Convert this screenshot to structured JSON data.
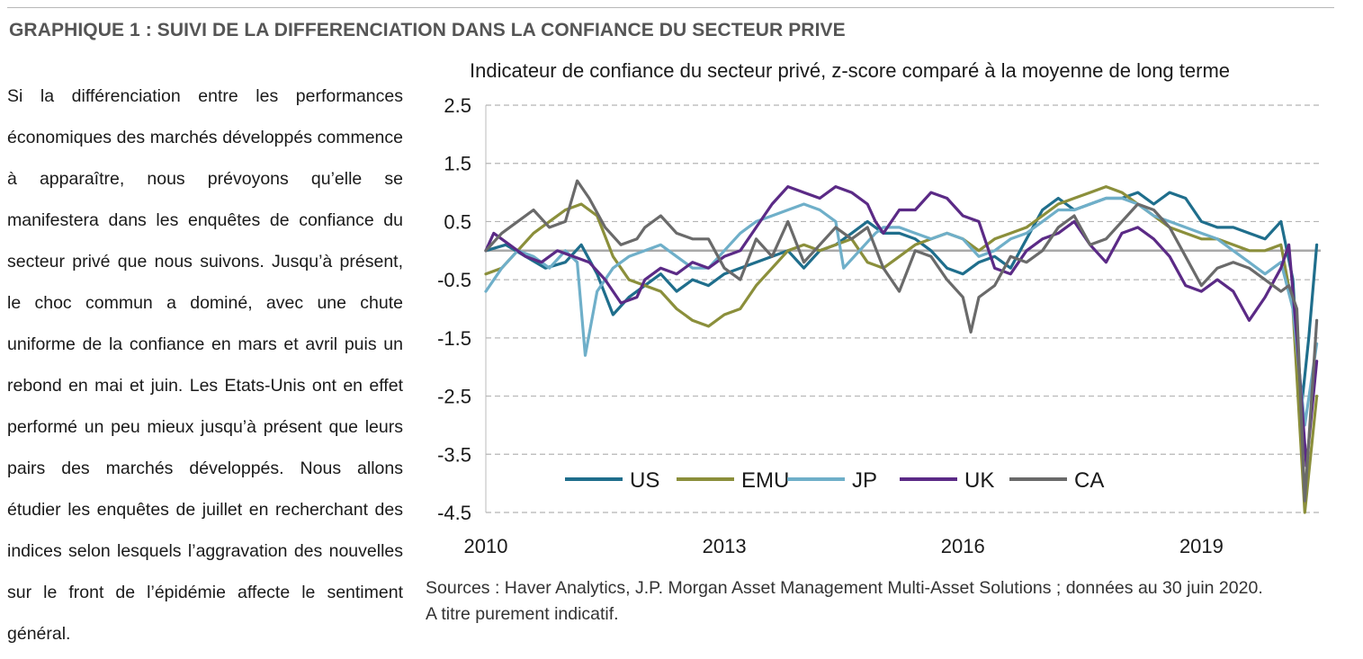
{
  "header": {
    "title": "GRAPHIQUE 1 : SUIVI DE LA DIFFERENCIATION DANS LA CONFIANCE DU SECTEUR PRIVE"
  },
  "body": {
    "paragraph": "Si la différenciation entre les performances économiques des marchés développés commence à apparaître, nous prévoyons qu’elle se manifestera dans les enquêtes de confiance du secteur privé que nous suivons. Jusqu’à présent, le choc commun a dominé, avec une chute uniforme de la confiance en mars et avril puis un rebond en mai et juin. Les Etats-Unis ont en effet performé un peu mieux jusqu’à présent que leurs pairs des marchés développés. Nous allons étudier les enquêtes de juillet en recherchant des indices selon lesquels l’aggravation des nouvelles sur le front de l’épidémie affecte le sentiment général."
  },
  "footer": {
    "sources": "Sources : Haver Analytics, J.P. Morgan Asset Management Multi-Asset Solutions ; données au 30 juin 2020.",
    "disclaimer": "A titre purement indicatif."
  },
  "chart_data": {
    "type": "line",
    "title": "Indicateur de confiance du secteur privé, z-score comparé à la moyenne de long terme",
    "xlabel": "",
    "ylabel": "",
    "xlim": [
      2010,
      2020.5
    ],
    "ylim": [
      -4.5,
      2.5
    ],
    "x_ticks": [
      2010,
      2013,
      2016,
      2019
    ],
    "x_tick_labels": [
      "2010",
      "2013",
      "2016",
      "2019"
    ],
    "y_ticks": [
      2.5,
      1.5,
      0.5,
      -0.5,
      -1.5,
      -2.5,
      -3.5,
      -4.5
    ],
    "y_tick_labels": [
      "2.5",
      "1.5",
      "0.5",
      "-0.5",
      "-1.5",
      "-2.5",
      "-3.5",
      "-4.5"
    ],
    "grid": "horizontal dashed",
    "legend": "bottom-left, inside plot",
    "series": [
      {
        "name": "US",
        "color": "#1f6e8c",
        "points": [
          [
            2010.0,
            0.0
          ],
          [
            2010.25,
            0.1
          ],
          [
            2010.5,
            -0.1
          ],
          [
            2010.75,
            -0.3
          ],
          [
            2011.0,
            -0.2
          ],
          [
            2011.2,
            0.1
          ],
          [
            2011.4,
            -0.4
          ],
          [
            2011.6,
            -1.1
          ],
          [
            2011.8,
            -0.8
          ],
          [
            2012.0,
            -0.6
          ],
          [
            2012.2,
            -0.4
          ],
          [
            2012.4,
            -0.7
          ],
          [
            2012.6,
            -0.5
          ],
          [
            2012.8,
            -0.6
          ],
          [
            2013.0,
            -0.4
          ],
          [
            2013.2,
            -0.3
          ],
          [
            2013.4,
            -0.2
          ],
          [
            2013.6,
            -0.1
          ],
          [
            2013.8,
            0.0
          ],
          [
            2014.0,
            -0.3
          ],
          [
            2014.2,
            0.0
          ],
          [
            2014.4,
            0.1
          ],
          [
            2014.6,
            0.3
          ],
          [
            2014.8,
            0.5
          ],
          [
            2015.0,
            0.3
          ],
          [
            2015.2,
            0.3
          ],
          [
            2015.4,
            0.2
          ],
          [
            2015.6,
            0.0
          ],
          [
            2015.8,
            -0.3
          ],
          [
            2016.0,
            -0.4
          ],
          [
            2016.2,
            -0.2
          ],
          [
            2016.4,
            -0.1
          ],
          [
            2016.6,
            -0.3
          ],
          [
            2016.8,
            0.2
          ],
          [
            2017.0,
            0.7
          ],
          [
            2017.2,
            0.9
          ],
          [
            2017.4,
            0.7
          ],
          [
            2017.6,
            0.8
          ],
          [
            2017.8,
            0.9
          ],
          [
            2018.0,
            0.9
          ],
          [
            2018.2,
            1.0
          ],
          [
            2018.4,
            0.8
          ],
          [
            2018.6,
            1.0
          ],
          [
            2018.8,
            0.9
          ],
          [
            2019.0,
            0.5
          ],
          [
            2019.2,
            0.4
          ],
          [
            2019.4,
            0.4
          ],
          [
            2019.6,
            0.3
          ],
          [
            2019.8,
            0.2
          ],
          [
            2020.0,
            0.5
          ],
          [
            2020.15,
            -0.5
          ],
          [
            2020.25,
            -2.8
          ],
          [
            2020.35,
            -1.5
          ],
          [
            2020.45,
            0.1
          ]
        ]
      },
      {
        "name": "EMU",
        "color": "#8b8f3b",
        "points": [
          [
            2010.0,
            -0.4
          ],
          [
            2010.2,
            -0.3
          ],
          [
            2010.4,
            0.0
          ],
          [
            2010.6,
            0.3
          ],
          [
            2010.8,
            0.5
          ],
          [
            2011.0,
            0.7
          ],
          [
            2011.2,
            0.8
          ],
          [
            2011.4,
            0.6
          ],
          [
            2011.6,
            -0.1
          ],
          [
            2011.8,
            -0.5
          ],
          [
            2012.0,
            -0.6
          ],
          [
            2012.2,
            -0.7
          ],
          [
            2012.4,
            -1.0
          ],
          [
            2012.6,
            -1.2
          ],
          [
            2012.8,
            -1.3
          ],
          [
            2013.0,
            -1.1
          ],
          [
            2013.2,
            -1.0
          ],
          [
            2013.4,
            -0.6
          ],
          [
            2013.6,
            -0.3
          ],
          [
            2013.8,
            0.0
          ],
          [
            2014.0,
            0.1
          ],
          [
            2014.2,
            0.0
          ],
          [
            2014.4,
            0.1
          ],
          [
            2014.6,
            0.2
          ],
          [
            2014.8,
            -0.2
          ],
          [
            2015.0,
            -0.3
          ],
          [
            2015.2,
            -0.1
          ],
          [
            2015.4,
            0.1
          ],
          [
            2015.6,
            0.2
          ],
          [
            2015.8,
            0.3
          ],
          [
            2016.0,
            0.2
          ],
          [
            2016.2,
            0.0
          ],
          [
            2016.4,
            0.2
          ],
          [
            2016.6,
            0.3
          ],
          [
            2016.8,
            0.4
          ],
          [
            2017.0,
            0.6
          ],
          [
            2017.2,
            0.8
          ],
          [
            2017.4,
            0.9
          ],
          [
            2017.6,
            1.0
          ],
          [
            2017.8,
            1.1
          ],
          [
            2018.0,
            1.0
          ],
          [
            2018.2,
            0.8
          ],
          [
            2018.4,
            0.6
          ],
          [
            2018.6,
            0.4
          ],
          [
            2018.8,
            0.3
          ],
          [
            2019.0,
            0.2
          ],
          [
            2019.2,
            0.2
          ],
          [
            2019.4,
            0.1
          ],
          [
            2019.6,
            0.0
          ],
          [
            2019.8,
            0.0
          ],
          [
            2020.0,
            0.1
          ],
          [
            2020.15,
            -1.0
          ],
          [
            2020.3,
            -4.5
          ],
          [
            2020.45,
            -2.5
          ]
        ]
      },
      {
        "name": "JP",
        "color": "#6fafc9",
        "points": [
          [
            2010.0,
            -0.7
          ],
          [
            2010.2,
            -0.3
          ],
          [
            2010.4,
            0.0
          ],
          [
            2010.6,
            -0.1
          ],
          [
            2010.8,
            -0.3
          ],
          [
            2011.0,
            0.0
          ],
          [
            2011.15,
            -0.2
          ],
          [
            2011.25,
            -1.8
          ],
          [
            2011.4,
            -0.7
          ],
          [
            2011.6,
            -0.3
          ],
          [
            2011.8,
            -0.1
          ],
          [
            2012.0,
            0.0
          ],
          [
            2012.2,
            0.1
          ],
          [
            2012.4,
            -0.1
          ],
          [
            2012.6,
            -0.3
          ],
          [
            2012.8,
            -0.3
          ],
          [
            2013.0,
            0.0
          ],
          [
            2013.2,
            0.3
          ],
          [
            2013.4,
            0.5
          ],
          [
            2013.6,
            0.6
          ],
          [
            2013.8,
            0.7
          ],
          [
            2014.0,
            0.8
          ],
          [
            2014.2,
            0.7
          ],
          [
            2014.4,
            0.5
          ],
          [
            2014.5,
            -0.3
          ],
          [
            2014.7,
            0.0
          ],
          [
            2014.9,
            0.3
          ],
          [
            2015.0,
            0.4
          ],
          [
            2015.2,
            0.4
          ],
          [
            2015.4,
            0.3
          ],
          [
            2015.6,
            0.2
          ],
          [
            2015.8,
            0.3
          ],
          [
            2016.0,
            0.2
          ],
          [
            2016.2,
            -0.1
          ],
          [
            2016.4,
            0.0
          ],
          [
            2016.6,
            0.2
          ],
          [
            2016.8,
            0.3
          ],
          [
            2017.0,
            0.5
          ],
          [
            2017.2,
            0.7
          ],
          [
            2017.4,
            0.7
          ],
          [
            2017.6,
            0.8
          ],
          [
            2017.8,
            0.9
          ],
          [
            2018.0,
            0.9
          ],
          [
            2018.2,
            0.8
          ],
          [
            2018.4,
            0.6
          ],
          [
            2018.6,
            0.5
          ],
          [
            2018.8,
            0.4
          ],
          [
            2019.0,
            0.3
          ],
          [
            2019.2,
            0.2
          ],
          [
            2019.4,
            0.0
          ],
          [
            2019.6,
            -0.2
          ],
          [
            2019.8,
            -0.4
          ],
          [
            2020.0,
            -0.2
          ],
          [
            2020.15,
            -1.0
          ],
          [
            2020.3,
            -3.0
          ],
          [
            2020.45,
            -1.6
          ]
        ]
      },
      {
        "name": "UK",
        "color": "#5b2a86",
        "points": [
          [
            2010.0,
            0.0
          ],
          [
            2010.1,
            0.3
          ],
          [
            2010.3,
            0.1
          ],
          [
            2010.5,
            -0.1
          ],
          [
            2010.7,
            -0.2
          ],
          [
            2010.9,
            0.0
          ],
          [
            2011.1,
            -0.1
          ],
          [
            2011.3,
            -0.2
          ],
          [
            2011.5,
            -0.5
          ],
          [
            2011.7,
            -0.9
          ],
          [
            2011.9,
            -0.8
          ],
          [
            2012.0,
            -0.5
          ],
          [
            2012.2,
            -0.3
          ],
          [
            2012.4,
            -0.4
          ],
          [
            2012.6,
            -0.2
          ],
          [
            2012.8,
            -0.3
          ],
          [
            2013.0,
            -0.1
          ],
          [
            2013.2,
            0.0
          ],
          [
            2013.4,
            0.4
          ],
          [
            2013.6,
            0.8
          ],
          [
            2013.8,
            1.1
          ],
          [
            2014.0,
            1.0
          ],
          [
            2014.2,
            0.9
          ],
          [
            2014.4,
            1.1
          ],
          [
            2014.6,
            1.0
          ],
          [
            2014.8,
            0.8
          ],
          [
            2014.9,
            0.5
          ],
          [
            2015.0,
            0.3
          ],
          [
            2015.2,
            0.7
          ],
          [
            2015.4,
            0.7
          ],
          [
            2015.6,
            1.0
          ],
          [
            2015.8,
            0.9
          ],
          [
            2016.0,
            0.6
          ],
          [
            2016.2,
            0.5
          ],
          [
            2016.4,
            -0.3
          ],
          [
            2016.6,
            -0.4
          ],
          [
            2016.8,
            0.0
          ],
          [
            2017.0,
            0.2
          ],
          [
            2017.2,
            0.3
          ],
          [
            2017.4,
            0.5
          ],
          [
            2017.6,
            0.1
          ],
          [
            2017.8,
            -0.2
          ],
          [
            2018.0,
            0.3
          ],
          [
            2018.2,
            0.4
          ],
          [
            2018.4,
            0.2
          ],
          [
            2018.6,
            -0.1
          ],
          [
            2018.8,
            -0.6
          ],
          [
            2019.0,
            -0.7
          ],
          [
            2019.2,
            -0.5
          ],
          [
            2019.4,
            -0.7
          ],
          [
            2019.6,
            -1.2
          ],
          [
            2019.8,
            -0.8
          ],
          [
            2020.0,
            -0.3
          ],
          [
            2020.1,
            0.1
          ],
          [
            2020.2,
            -1.5
          ],
          [
            2020.32,
            -3.7
          ],
          [
            2020.45,
            -1.9
          ]
        ]
      },
      {
        "name": "CA",
        "color": "#6a6a6a",
        "points": [
          [
            2010.0,
            0.0
          ],
          [
            2010.2,
            0.3
          ],
          [
            2010.4,
            0.5
          ],
          [
            2010.6,
            0.7
          ],
          [
            2010.8,
            0.4
          ],
          [
            2011.0,
            0.5
          ],
          [
            2011.15,
            1.2
          ],
          [
            2011.3,
            0.9
          ],
          [
            2011.5,
            0.4
          ],
          [
            2011.7,
            0.1
          ],
          [
            2011.9,
            0.2
          ],
          [
            2012.0,
            0.4
          ],
          [
            2012.2,
            0.6
          ],
          [
            2012.4,
            0.3
          ],
          [
            2012.6,
            0.2
          ],
          [
            2012.8,
            0.2
          ],
          [
            2013.0,
            -0.3
          ],
          [
            2013.2,
            -0.5
          ],
          [
            2013.4,
            0.2
          ],
          [
            2013.6,
            -0.1
          ],
          [
            2013.8,
            0.5
          ],
          [
            2014.0,
            -0.2
          ],
          [
            2014.2,
            0.1
          ],
          [
            2014.4,
            0.4
          ],
          [
            2014.6,
            0.2
          ],
          [
            2014.8,
            0.4
          ],
          [
            2015.0,
            -0.3
          ],
          [
            2015.2,
            -0.7
          ],
          [
            2015.4,
            0.0
          ],
          [
            2015.6,
            -0.1
          ],
          [
            2015.8,
            -0.5
          ],
          [
            2016.0,
            -0.8
          ],
          [
            2016.1,
            -1.4
          ],
          [
            2016.2,
            -0.8
          ],
          [
            2016.4,
            -0.6
          ],
          [
            2016.6,
            -0.1
          ],
          [
            2016.8,
            -0.2
          ],
          [
            2017.0,
            0.0
          ],
          [
            2017.2,
            0.4
          ],
          [
            2017.4,
            0.6
          ],
          [
            2017.6,
            0.1
          ],
          [
            2017.8,
            0.2
          ],
          [
            2018.0,
            0.5
          ],
          [
            2018.2,
            0.8
          ],
          [
            2018.4,
            0.7
          ],
          [
            2018.6,
            0.4
          ],
          [
            2018.8,
            -0.1
          ],
          [
            2019.0,
            -0.6
          ],
          [
            2019.2,
            -0.3
          ],
          [
            2019.4,
            -0.2
          ],
          [
            2019.6,
            -0.3
          ],
          [
            2019.8,
            -0.5
          ],
          [
            2020.0,
            -0.7
          ],
          [
            2020.1,
            -0.6
          ],
          [
            2020.2,
            -1.0
          ],
          [
            2020.3,
            -4.3
          ],
          [
            2020.45,
            -1.2
          ]
        ]
      }
    ]
  }
}
